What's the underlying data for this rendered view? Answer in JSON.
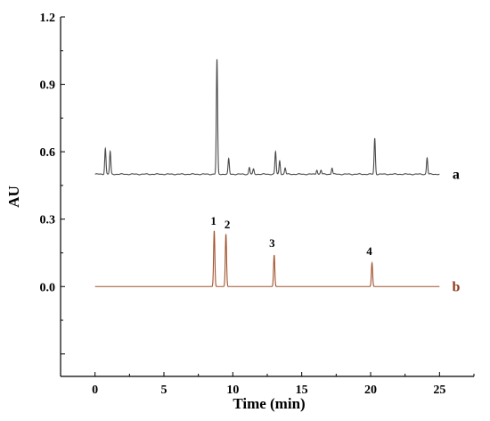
{
  "chart_data": {
    "type": "line",
    "xlabel": "Time (min)",
    "ylabel": "AU",
    "xlim": [
      -2.5,
      27.5
    ],
    "ylim": [
      -0.4,
      1.2
    ],
    "x_ticks": [
      0,
      5,
      10,
      15,
      20,
      25
    ],
    "x_tick_labels": [
      "0",
      "5",
      "10",
      "15",
      "20",
      "25"
    ],
    "y_ticks": [
      0.0,
      0.3,
      0.6,
      0.9,
      1.2
    ],
    "y_tick_labels": [
      "0.0",
      "0.3",
      "0.6",
      "0.9",
      "1.2"
    ],
    "grid": false,
    "series": [
      {
        "name": "a",
        "color": "#4a4a4a",
        "baseline": 0.5,
        "x_range": [
          0,
          25
        ],
        "peaks": [
          {
            "x": 0.75,
            "y": 0.615
          },
          {
            "x": 1.1,
            "y": 0.6
          },
          {
            "x": 8.85,
            "y": 1.01
          },
          {
            "x": 9.7,
            "y": 0.568
          },
          {
            "x": 11.2,
            "y": 0.53
          },
          {
            "x": 11.5,
            "y": 0.522
          },
          {
            "x": 13.1,
            "y": 0.6
          },
          {
            "x": 13.4,
            "y": 0.56
          },
          {
            "x": 13.8,
            "y": 0.528
          },
          {
            "x": 16.1,
            "y": 0.52
          },
          {
            "x": 16.4,
            "y": 0.518
          },
          {
            "x": 17.2,
            "y": 0.528
          },
          {
            "x": 20.3,
            "y": 0.66
          },
          {
            "x": 24.1,
            "y": 0.573
          }
        ]
      },
      {
        "name": "b",
        "color": "#a0522d",
        "baseline": 0.0,
        "x_range": [
          0,
          25
        ],
        "peaks": [
          {
            "x": 8.65,
            "y": 0.248
          },
          {
            "x": 9.5,
            "y": 0.233
          },
          {
            "x": 13.0,
            "y": 0.14
          },
          {
            "x": 20.1,
            "y": 0.105
          }
        ]
      }
    ],
    "peak_labels": [
      {
        "text": "1",
        "x": 8.6,
        "y": 0.275
      },
      {
        "text": "2",
        "x": 9.6,
        "y": 0.26
      },
      {
        "text": "3",
        "x": 12.85,
        "y": 0.175
      },
      {
        "text": "4",
        "x": 19.9,
        "y": 0.14
      }
    ],
    "trace_labels": [
      {
        "text": "a",
        "x": 26.2,
        "y": 0.5,
        "color": "#000000"
      },
      {
        "text": "b",
        "x": 26.2,
        "y": 0.0,
        "color": "#8b3a1a"
      }
    ]
  }
}
